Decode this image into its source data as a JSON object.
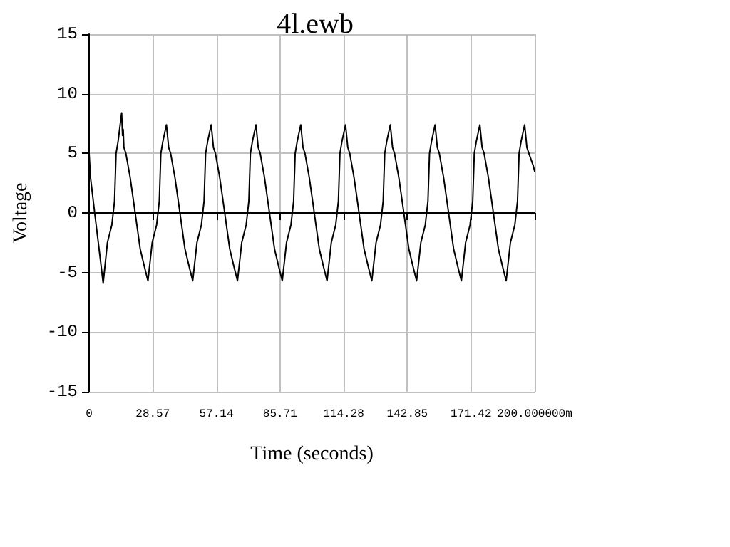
{
  "chart_data": {
    "type": "line",
    "title": "4l.ewb",
    "xlabel": "Time (seconds)",
    "ylabel": "Voltage",
    "xlim": [
      0,
      200
    ],
    "xticks": [
      0,
      28.57,
      57.14,
      85.71,
      114.28,
      142.85,
      171.42,
      {
        "value": 200,
        "label": "200.000000m"
      }
    ],
    "ylim": [
      -15,
      15
    ],
    "yticks": [
      -15,
      -10,
      -5,
      0,
      5,
      10,
      15
    ],
    "grid": true,
    "marker": "none",
    "line_style": "solid",
    "series": [
      {
        "color": "#000000",
        "x": [
          0,
          0.6,
          2.5,
          5.1,
          6.3,
          8.2,
          10.2,
          11.4,
          12.1,
          13,
          14.6,
          15,
          15.3,
          15.6,
          16.5,
          18.4,
          20.3,
          22.9,
          24.8,
          26.4,
          28.3,
          30.3,
          31.5,
          32.2,
          33.1,
          34.7,
          35.7,
          36.6,
          38.5,
          40.4,
          43,
          44.9,
          46.5,
          48.4,
          50.4,
          51.6,
          52.3,
          53.2,
          54.8,
          55.8,
          56.7,
          58.6,
          60.5,
          63.1,
          65,
          66.6,
          68.5,
          70.5,
          71.7,
          72.4,
          73.3,
          74.9,
          75.9,
          76.8,
          78.7,
          80.6,
          83.2,
          85.1,
          86.7,
          88.6,
          90.6,
          91.8,
          92.5,
          93.4,
          95,
          96,
          96.9,
          98.8,
          100.7,
          103.3,
          105.2,
          106.8,
          108.7,
          110.7,
          111.9,
          112.6,
          113.5,
          115.1,
          116.1,
          117,
          118.9,
          120.8,
          123.4,
          125.3,
          126.9,
          128.8,
          130.8,
          132,
          132.7,
          133.6,
          135.2,
          136.2,
          137.1,
          139,
          140.9,
          143.5,
          145.4,
          147,
          148.9,
          150.9,
          152.1,
          152.8,
          153.7,
          155.3,
          156.3,
          157.2,
          159.1,
          161,
          163.6,
          165.5,
          167.1,
          169,
          171,
          172.2,
          172.9,
          173.8,
          175.4,
          176.4,
          177.3,
          179.2,
          181.1,
          183.7,
          185.6,
          187.2,
          189.1,
          191.1,
          192.3,
          193,
          193.9,
          195.5,
          196.5,
          197.4,
          199.3,
          200
        ],
        "values": [
          5,
          3,
          0,
          -4,
          -5.9,
          -2.5,
          -1,
          1,
          5,
          6,
          8.4,
          6.5,
          7,
          5.5,
          5,
          3,
          0.5,
          -3,
          -4.5,
          -5.7,
          -2.5,
          -1,
          1,
          5,
          6,
          7.4,
          5.5,
          5,
          3,
          0.5,
          -3,
          -4.5,
          -5.7,
          -2.5,
          -1,
          1,
          5,
          6,
          7.4,
          5.5,
          5,
          3,
          0.5,
          -3,
          -4.5,
          -5.7,
          -2.5,
          -1,
          1,
          5,
          6,
          7.4,
          5.5,
          5,
          3,
          0.5,
          -3,
          -4.5,
          -5.7,
          -2.5,
          -1,
          1,
          5,
          6,
          7.4,
          5.5,
          5,
          3,
          0.5,
          -3,
          -4.5,
          -5.7,
          -2.5,
          -1,
          1,
          5,
          6,
          7.4,
          5.5,
          5,
          3,
          0.5,
          -3,
          -4.5,
          -5.7,
          -2.5,
          -1,
          1,
          5,
          6,
          7.4,
          5.5,
          5,
          3,
          0.5,
          -3,
          -4.5,
          -5.7,
          -2.5,
          -1,
          1,
          5,
          6,
          7.4,
          5.5,
          5,
          3,
          0.5,
          -3,
          -4.5,
          -5.7,
          -2.5,
          -1,
          1,
          5,
          6,
          7.4,
          5.5,
          5,
          3,
          0.5,
          -3,
          -4.5,
          -5.7,
          -2.5,
          -1,
          1,
          5,
          6,
          7.4,
          5.5,
          5,
          4,
          3.5
        ]
      }
    ]
  }
}
